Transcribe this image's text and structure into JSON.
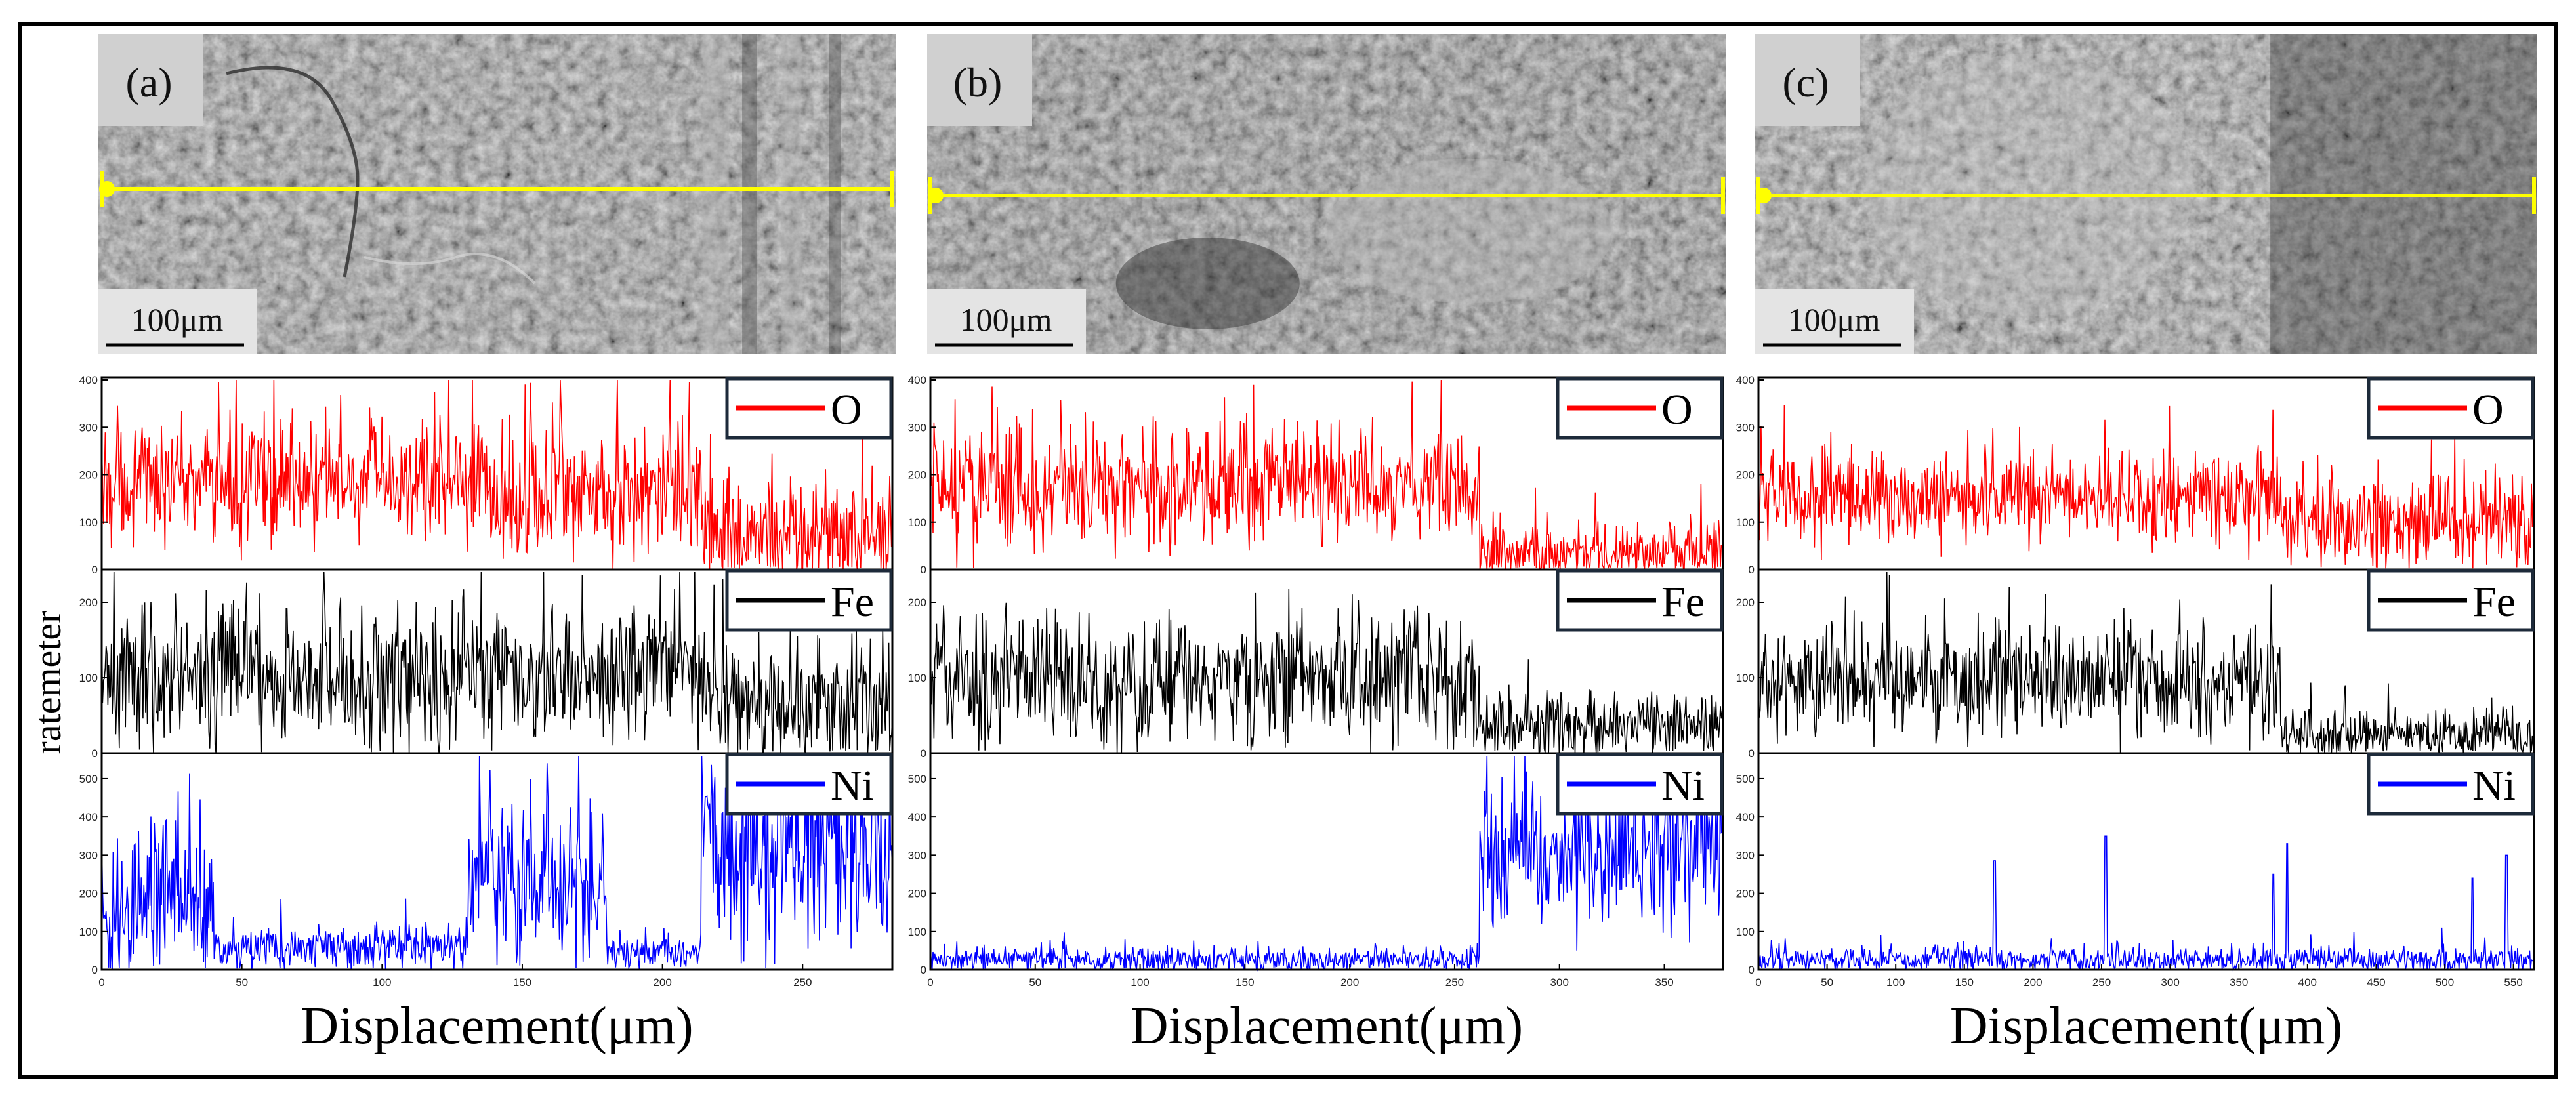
{
  "figure": {
    "ylabel": "ratemeter",
    "scale_bar_label": "100μm"
  },
  "colors": {
    "O": "#ff0000",
    "Fe": "#000000",
    "Ni": "#0000ff",
    "scan_line": "#ffff00",
    "frame": "#000000"
  },
  "chart_data": [
    {
      "panel": "(a)",
      "type": "line",
      "xlabel": "Displacement(μm)",
      "ylabel": "ratemeter",
      "xlim": [
        0,
        282
      ],
      "xticks": [
        0,
        50,
        100,
        150,
        200,
        250
      ],
      "boundary_um": 214,
      "series": [
        {
          "name": "O",
          "ylim": [
            0,
            400
          ],
          "yticks": [
            0,
            100,
            200,
            300,
            400
          ],
          "segments": [
            {
              "from": 0,
              "to": 130,
              "mean": 185,
              "spread": 95
            },
            {
              "from": 130,
              "to": 214,
              "mean": 165,
              "spread": 110
            },
            {
              "from": 214,
              "to": 282,
              "mean": 70,
              "spread": 90
            }
          ]
        },
        {
          "name": "Fe",
          "ylim": [
            0,
            240
          ],
          "yticks": [
            0,
            100,
            200
          ],
          "segments": [
            {
              "from": 0,
              "to": 214,
              "mean": 100,
              "spread": 70
            },
            {
              "from": 214,
              "to": 282,
              "mean": 60,
              "spread": 65
            }
          ]
        },
        {
          "name": "Ni",
          "ylim": [
            0,
            560
          ],
          "yticks": [
            0,
            100,
            200,
            300,
            400,
            500
          ],
          "segments": [
            {
              "from": 0,
              "to": 40,
              "mean": 170,
              "spread": 150
            },
            {
              "from": 40,
              "to": 130,
              "mean": 55,
              "spread": 45
            },
            {
              "from": 130,
              "to": 180,
              "mean": 240,
              "spread": 170
            },
            {
              "from": 180,
              "to": 214,
              "mean": 45,
              "spread": 35
            },
            {
              "from": 214,
              "to": 282,
              "mean": 330,
              "spread": 210
            }
          ]
        }
      ]
    },
    {
      "panel": "(b)",
      "type": "line",
      "xlabel": "Displacement(μm)",
      "ylabel": "ratemeter",
      "xlim": [
        0,
        378
      ],
      "xticks": [
        0,
        50,
        100,
        150,
        200,
        250,
        300,
        350
      ],
      "boundary_um": 262,
      "series": [
        {
          "name": "O",
          "ylim": [
            0,
            400
          ],
          "yticks": [
            0,
            100,
            200,
            300,
            400
          ],
          "segments": [
            {
              "from": 0,
              "to": 262,
              "mean": 170,
              "spread": 95
            },
            {
              "from": 262,
              "to": 378,
              "mean": 35,
              "spread": 50
            }
          ]
        },
        {
          "name": "Fe",
          "ylim": [
            0,
            240
          ],
          "yticks": [
            0,
            100,
            200
          ],
          "segments": [
            {
              "from": 0,
              "to": 262,
              "mean": 95,
              "spread": 70
            },
            {
              "from": 262,
              "to": 378,
              "mean": 35,
              "spread": 35
            }
          ]
        },
        {
          "name": "Ni",
          "ylim": [
            0,
            560
          ],
          "yticks": [
            0,
            100,
            200,
            300,
            400,
            500
          ],
          "segments": [
            {
              "from": 0,
              "to": 262,
              "mean": 25,
              "spread": 25
            },
            {
              "from": 262,
              "to": 378,
              "mean": 290,
              "spread": 150
            }
          ]
        }
      ]
    },
    {
      "panel": "(c)",
      "type": "line",
      "xlabel": "Displacement(μm)",
      "ylabel": "ratemeter",
      "xlim": [
        0,
        565
      ],
      "xticks": [
        0,
        50,
        100,
        150,
        200,
        250,
        300,
        350,
        400,
        450,
        500,
        550
      ],
      "boundary_um": 380,
      "series": [
        {
          "name": "O",
          "ylim": [
            0,
            400
          ],
          "yticks": [
            0,
            100,
            200,
            300,
            400
          ],
          "segments": [
            {
              "from": 0,
              "to": 380,
              "mean": 150,
              "spread": 70
            },
            {
              "from": 380,
              "to": 565,
              "mean": 100,
              "spread": 75
            }
          ]
        },
        {
          "name": "Fe",
          "ylim": [
            0,
            240
          ],
          "yticks": [
            0,
            100,
            200
          ],
          "segments": [
            {
              "from": 0,
              "to": 380,
              "mean": 95,
              "spread": 55
            },
            {
              "from": 380,
              "to": 565,
              "mean": 25,
              "spread": 25
            }
          ]
        },
        {
          "name": "Ni",
          "ylim": [
            0,
            560
          ],
          "yticks": [
            0,
            100,
            200,
            300,
            400,
            500
          ],
          "segments": [
            {
              "from": 0,
              "to": 565,
              "mean": 25,
              "spread": 25
            }
          ],
          "peaks": [
            [
              172,
              285
            ],
            [
              253,
              350
            ],
            [
              375,
              250
            ],
            [
              385,
              330
            ],
            [
              520,
              240
            ],
            [
              545,
              300
            ]
          ]
        }
      ]
    }
  ]
}
